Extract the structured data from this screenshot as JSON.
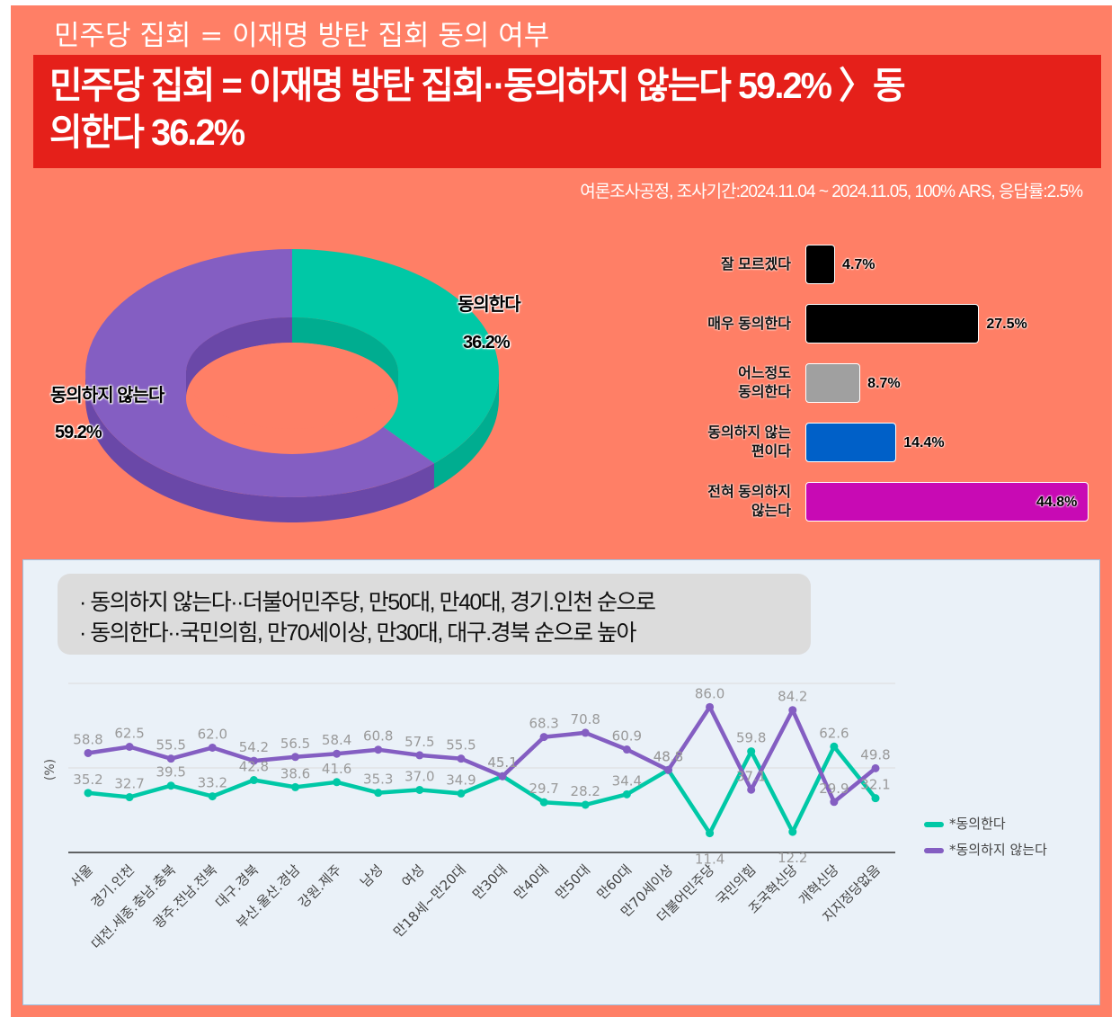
{
  "header": {
    "top_title": "민주당 집회 = 이재명 방탄 집회 동의 여부",
    "banner_line1": "민주당 집회 = 이재명 방탄 집회··동의하지 않는다 59.2% 〉동",
    "banner_line2": "의한다 36.2%",
    "survey_info": "여론조사공정, 조사기간:2024.11.04 ~ 2024.11.05, 100% ARS, 응답률:2.5%"
  },
  "notes": {
    "line1": "· 동의하지 않는다··더불어민주당, 만50대, 만40대, 경기.인천 순으로",
    "line2": "· 동의한다··국민의힘, 만70세이상, 만30대, 대구.경북 순으로 높아"
  },
  "chart_data": [
    {
      "type": "pie",
      "variant": "3d-donut",
      "title": "",
      "slices": [
        {
          "label": "동의한다",
          "value": 36.2,
          "value_label": "36.2%",
          "color": "#00c8a6",
          "side_color": "#00ad90"
        },
        {
          "label": "동의하지 않는다",
          "value": 59.2,
          "value_label": "59.2%",
          "color": "#845ec2",
          "side_color": "#6a48a8"
        }
      ]
    },
    {
      "type": "bar",
      "orientation": "horizontal",
      "categories": [
        "잘 모르겠다",
        "매우 동의한다",
        "어느정도\n동의한다",
        "동의하지 않는\n편이다",
        "전혀 동의하지\n않는다"
      ],
      "values": [
        4.7,
        27.5,
        8.7,
        14.4,
        44.8
      ],
      "value_labels": [
        "4.7%",
        "27.5%",
        "8.7%",
        "14.4%",
        "44.8%"
      ],
      "colors": [
        "#000000",
        "#000000",
        "#a0a0a0",
        "#0060c8",
        "#c80ab4"
      ],
      "xlim": [
        0,
        44.8
      ]
    },
    {
      "type": "line",
      "ylabel": "(%)",
      "ylim": [
        0,
        100
      ],
      "grid": true,
      "legend_position": "right",
      "categories": [
        "서울",
        "경기.인천",
        "대전.세종.충남.충북",
        "광주.전남.전북",
        "대구.경북",
        "부산.울산.경남",
        "강원.제주",
        "남성",
        "여성",
        "만18세~만20대",
        "만30대",
        "만40대",
        "만50대",
        "만60대",
        "만70세이상",
        "더불어민주당",
        "국민의힘",
        "조국혁신당",
        "개혁신당",
        "지지정당없음"
      ],
      "series": [
        {
          "name": "*동의한다",
          "color": "#00c8a6",
          "values": [
            35.2,
            32.7,
            39.5,
            33.2,
            42.8,
            38.6,
            41.6,
            35.3,
            37.0,
            34.9,
            45.1,
            29.7,
            28.2,
            34.4,
            48.8,
            11.4,
            59.8,
            12.2,
            62.6,
            32.1
          ]
        },
        {
          "name": "*동의하지 않는다",
          "color": "#845ec2",
          "values": [
            58.8,
            62.5,
            55.5,
            62.0,
            54.2,
            56.5,
            58.4,
            60.8,
            57.5,
            55.5,
            45.1,
            68.3,
            70.8,
            60.9,
            48.8,
            86.0,
            37.1,
            84.2,
            29.9,
            49.8
          ]
        }
      ]
    }
  ]
}
